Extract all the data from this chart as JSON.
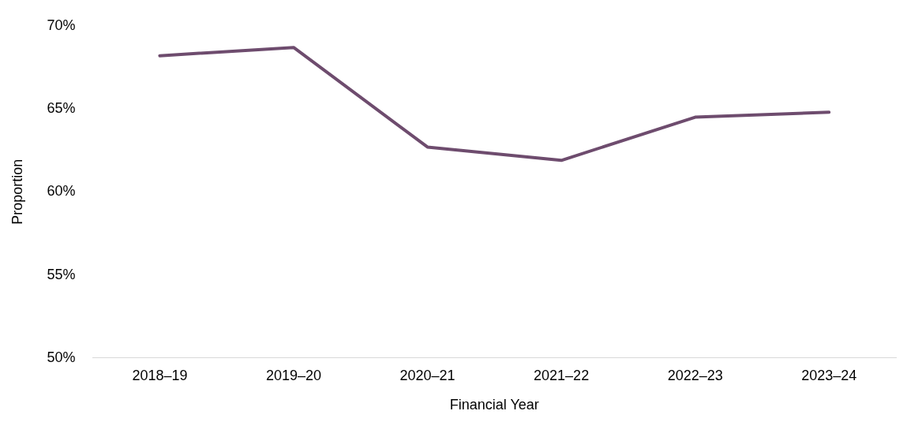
{
  "chart_data": {
    "type": "line",
    "xlabel": "Financial Year",
    "ylabel": "Proportion",
    "categories": [
      "2018–19",
      "2019–20",
      "2020–21",
      "2021–22",
      "2022–23",
      "2023–24"
    ],
    "series": [
      {
        "color": "#6e4c6e",
        "values": [
          68.2,
          68.7,
          62.7,
          61.9,
          64.5,
          64.8
        ]
      }
    ],
    "ylim": [
      50,
      70
    ],
    "yticks": [
      {
        "value": 50,
        "label": "50%"
      },
      {
        "value": 55,
        "label": "55%"
      },
      {
        "value": 60,
        "label": "60%"
      },
      {
        "value": 65,
        "label": "65%"
      },
      {
        "value": 70,
        "label": "70%"
      }
    ],
    "grid": false,
    "legend": false,
    "marker": "none",
    "line_style": "solid"
  }
}
